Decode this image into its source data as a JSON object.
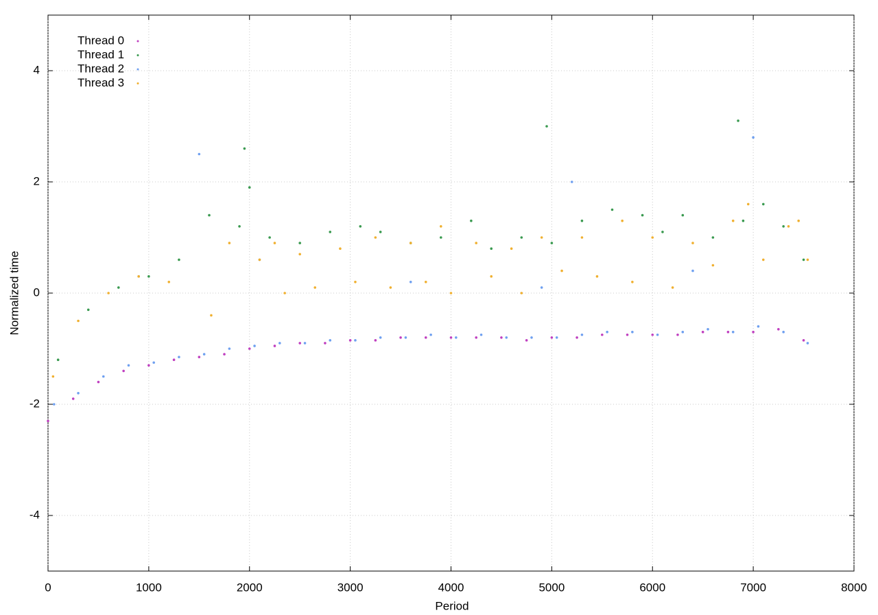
{
  "chart_data": {
    "type": "scatter",
    "xlabel": "Period",
    "ylabel": "Normalized time",
    "xlim": [
      0,
      8000
    ],
    "xticks": [
      0,
      1000,
      2000,
      3000,
      4000,
      5000,
      6000,
      7000,
      8000
    ],
    "ylim": [
      -5,
      5
    ],
    "yticks": [
      -4,
      -2,
      0,
      2,
      4
    ],
    "grid": true,
    "legend": "top-left",
    "series": [
      {
        "name": "Thread 0",
        "color": "#c040c0",
        "x": [
          0,
          250,
          500,
          750,
          1000,
          1250,
          1500,
          1750,
          2000,
          2250,
          2500,
          2750,
          3000,
          3250,
          3500,
          3750,
          4000,
          4250,
          4500,
          4750,
          5000,
          5250,
          5500,
          5750,
          6000,
          6250,
          6500,
          6750,
          7000,
          7250,
          7500
        ],
        "values": [
          -2.3,
          -1.9,
          -1.6,
          -1.4,
          -1.3,
          -1.2,
          -1.15,
          -1.1,
          -1.0,
          -0.95,
          -0.9,
          -0.9,
          -0.85,
          -0.85,
          -0.8,
          -0.8,
          -0.8,
          -0.8,
          -0.8,
          -0.85,
          -0.8,
          -0.8,
          -0.75,
          -0.75,
          -0.75,
          -0.75,
          -0.7,
          -0.7,
          -0.7,
          -0.65,
          -0.85
        ]
      },
      {
        "name": "Thread 1",
        "color": "#3a9a50",
        "x": [
          100,
          400,
          700,
          1000,
          1300,
          1600,
          1900,
          2000,
          2200,
          2500,
          2800,
          3100,
          3300,
          3600,
          3900,
          4200,
          4400,
          4700,
          5000,
          5300,
          5600,
          5900,
          6100,
          6300,
          6600,
          6900,
          7100,
          7300,
          7500,
          1950,
          4950,
          6850
        ],
        "values": [
          -1.2,
          -0.3,
          0.1,
          0.3,
          0.6,
          1.4,
          1.2,
          1.9,
          1.0,
          0.9,
          1.1,
          1.2,
          1.1,
          0.9,
          1.0,
          1.3,
          0.8,
          1.0,
          0.9,
          1.3,
          1.5,
          1.4,
          1.1,
          1.4,
          1.0,
          1.3,
          1.6,
          1.2,
          0.6,
          2.6,
          3.0,
          3.1
        ]
      },
      {
        "name": "Thread 2",
        "color": "#6fa0f0",
        "x": [
          60,
          300,
          550,
          800,
          1050,
          1300,
          1550,
          1800,
          2050,
          2300,
          2550,
          2800,
          3050,
          3300,
          3550,
          3800,
          4050,
          4300,
          4550,
          4800,
          5050,
          5300,
          5550,
          5800,
          6050,
          6300,
          6550,
          6800,
          7050,
          7300,
          7540,
          900,
          2100,
          3600,
          4900,
          6400,
          1500,
          5200,
          7000
        ],
        "values": [
          -2.0,
          -1.8,
          -1.5,
          -1.3,
          -1.25,
          -1.15,
          -1.1,
          -1.0,
          -0.95,
          -0.9,
          -0.9,
          -0.85,
          -0.85,
          -0.8,
          -0.8,
          -0.75,
          -0.8,
          -0.75,
          -0.8,
          -0.8,
          -0.8,
          -0.75,
          -0.7,
          -0.7,
          -0.75,
          -0.7,
          -0.65,
          -0.7,
          -0.6,
          -0.7,
          -0.9,
          0.3,
          0.6,
          0.2,
          0.1,
          0.4,
          2.5,
          2.0,
          2.8
        ]
      },
      {
        "name": "Thread 3",
        "color": "#f0b030",
        "x": [
          50,
          300,
          600,
          900,
          1200,
          1620,
          1800,
          2100,
          2250,
          2350,
          2500,
          2650,
          2900,
          3050,
          3250,
          3400,
          3600,
          3750,
          3900,
          4000,
          4250,
          4400,
          4600,
          4700,
          4900,
          5100,
          5300,
          5450,
          5700,
          5800,
          6000,
          6200,
          6400,
          6600,
          6800,
          6950,
          7100,
          7350,
          7450,
          7540
        ],
        "values": [
          -1.5,
          -0.5,
          0.0,
          0.3,
          0.2,
          -0.4,
          0.9,
          0.6,
          0.9,
          0.0,
          0.7,
          0.1,
          0.8,
          0.2,
          1.0,
          0.1,
          0.9,
          0.2,
          1.2,
          0.0,
          0.9,
          0.3,
          0.8,
          0.0,
          1.0,
          0.4,
          1.0,
          0.3,
          1.3,
          0.2,
          1.0,
          0.1,
          0.9,
          0.5,
          1.3,
          1.6,
          0.6,
          1.2,
          1.3,
          0.6
        ]
      }
    ]
  }
}
